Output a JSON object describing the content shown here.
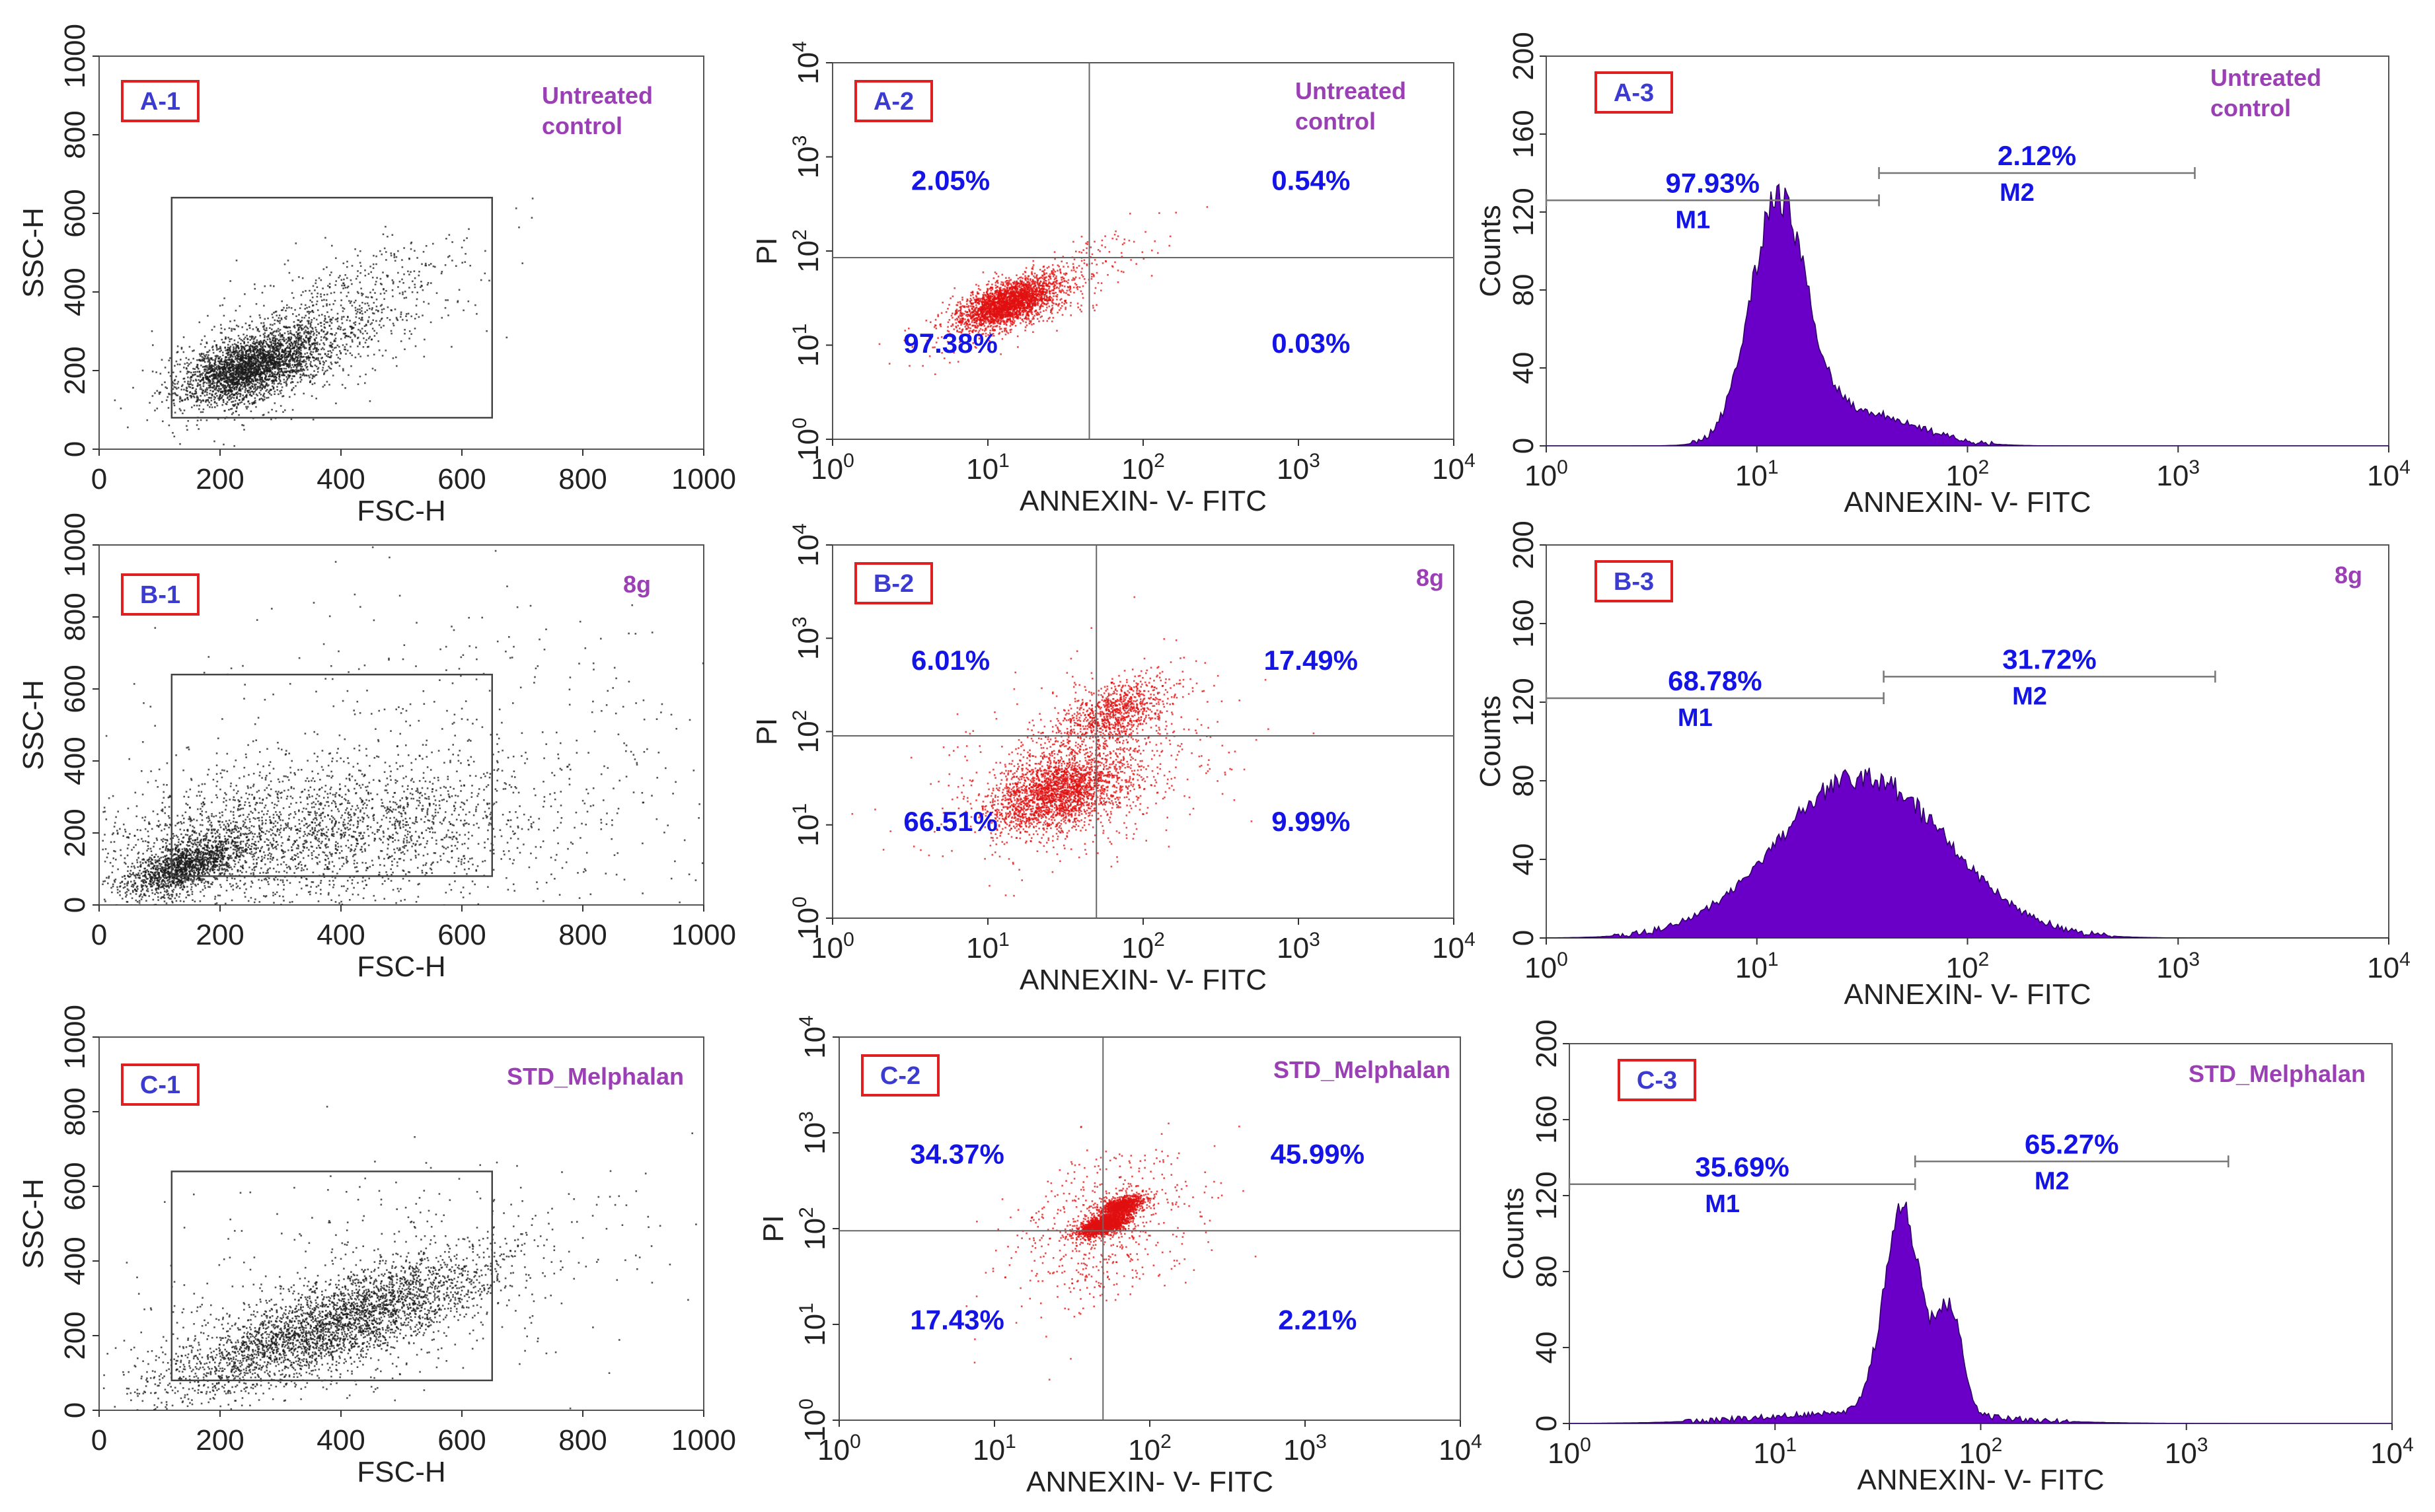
{
  "figure_title": "",
  "colors": {
    "scatter_gray": "#1a1a1a",
    "scatter_red": "#e01010",
    "histogram_fill": "#6a00c8",
    "percent_text": "#1414e6",
    "sample_text": "#9b3fb5",
    "panel_id_text": "#3b3bd1",
    "panel_id_border": "#e02020"
  },
  "chart_data": [
    {
      "id": "A-1",
      "type": "scatter",
      "sample": "Untreated control",
      "xlabel": "FSC-H",
      "ylabel": "SSC-H",
      "xlim": [
        0,
        1000
      ],
      "ylim": [
        0,
        1000
      ],
      "xticks": [
        "0",
        "200",
        "400",
        "600",
        "800",
        "1000"
      ],
      "yticks": [
        "0",
        "200",
        "400",
        "600",
        "800",
        "1000"
      ],
      "gate": {
        "x": [
          120,
          650
        ],
        "y": [
          80,
          640
        ]
      },
      "clusters": [
        {
          "cx": 250,
          "cy": 210,
          "sx": 55,
          "sy": 45,
          "n": 2600,
          "rho": 0.5
        },
        {
          "cx": 350,
          "cy": 300,
          "sx": 120,
          "sy": 110,
          "n": 1100,
          "rho": 0.7
        }
      ]
    },
    {
      "id": "A-2",
      "type": "scatter",
      "sample": "Untreated control",
      "xlabel": "ANNEXIN- V- FITC",
      "ylabel": "PI",
      "xscale": "log",
      "yscale": "log",
      "xlim": [
        1,
        10000
      ],
      "ylim": [
        1,
        10000
      ],
      "xtick_exps": [
        "0",
        "1",
        "2",
        "3",
        "4"
      ],
      "ytick_exps": [
        "0",
        "1",
        "2",
        "3",
        "4"
      ],
      "quadrant_split": {
        "x": 45,
        "y": 85
      },
      "quadrants": {
        "upper_left": "2.05%",
        "upper_right": "0.54%",
        "lower_left": "97.38%",
        "lower_right": "0.03%"
      },
      "clusters": [
        {
          "cx": 1.12,
          "cy": 1.45,
          "sx": 0.15,
          "sy": 0.13,
          "n": 2400,
          "rho": 0.55
        },
        {
          "cx": 1.3,
          "cy": 1.55,
          "sx": 0.35,
          "sy": 0.3,
          "n": 500,
          "rho": 0.8
        }
      ]
    },
    {
      "id": "A-3",
      "type": "histogram",
      "sample": "Untreated control",
      "xlabel": "ANNEXIN- V- FITC",
      "ylabel": "Counts",
      "xscale": "log",
      "xlim": [
        1,
        10000
      ],
      "ylim": [
        0,
        200
      ],
      "xtick_exps": [
        "0",
        "1",
        "2",
        "3",
        "4"
      ],
      "yticks": [
        "0",
        "40",
        "80",
        "120",
        "160",
        "200"
      ],
      "markers": [
        {
          "name": "M1",
          "range": [
            1,
            38
          ],
          "percent": "97.93%",
          "level": 126
        },
        {
          "name": "M2",
          "range": [
            38,
            1200
          ],
          "percent": "2.12%",
          "level": 140
        }
      ],
      "peaks": [
        {
          "center": 1.1,
          "sigma": 0.13,
          "height": 120
        },
        {
          "center": 1.45,
          "sigma": 0.28,
          "height": 18
        }
      ]
    },
    {
      "id": "B-1",
      "type": "scatter",
      "sample": "8g",
      "xlabel": "FSC-H",
      "ylabel": "SSC-H",
      "xlim": [
        0,
        1000
      ],
      "ylim": [
        0,
        1000
      ],
      "xticks": [
        "0",
        "200",
        "400",
        "600",
        "800",
        "1000"
      ],
      "yticks": [
        "0",
        "200",
        "400",
        "600",
        "800",
        "1000"
      ],
      "gate": {
        "x": [
          120,
          650
        ],
        "y": [
          80,
          640
        ]
      },
      "clusters": [
        {
          "cx": 140,
          "cy": 110,
          "sx": 50,
          "sy": 45,
          "n": 1500,
          "rho": 0.6
        },
        {
          "cx": 350,
          "cy": 200,
          "sx": 190,
          "sy": 100,
          "n": 2200,
          "rho": 0.25
        },
        {
          "cx": 600,
          "cy": 350,
          "sx": 300,
          "sy": 250,
          "n": 600,
          "rho": 0
        }
      ]
    },
    {
      "id": "B-2",
      "type": "scatter",
      "sample": "8g",
      "xlabel": "ANNEXIN- V- FITC",
      "ylabel": "PI",
      "xscale": "log",
      "yscale": "log",
      "xlim": [
        1,
        10000
      ],
      "ylim": [
        1,
        10000
      ],
      "xtick_exps": [
        "0",
        "1",
        "2",
        "3",
        "4"
      ],
      "ytick_exps": [
        "0",
        "1",
        "2",
        "3",
        "4"
      ],
      "quadrant_split": {
        "x": 50,
        "y": 90
      },
      "quadrants": {
        "upper_left": "6.01%",
        "upper_right": "17.49%",
        "lower_left": "66.51%",
        "lower_right": "9.99%"
      },
      "clusters": [
        {
          "cx": 1.45,
          "cy": 1.35,
          "sx": 0.22,
          "sy": 0.22,
          "n": 2200,
          "rho": 0.4
        },
        {
          "cx": 1.8,
          "cy": 2.2,
          "sx": 0.18,
          "sy": 0.18,
          "n": 900,
          "rho": 0.5
        },
        {
          "cx": 1.6,
          "cy": 1.6,
          "sx": 0.45,
          "sy": 0.45,
          "n": 700,
          "rho": 0.3
        }
      ]
    },
    {
      "id": "B-3",
      "type": "histogram",
      "sample": "8g",
      "xlabel": "ANNEXIN- V- FITC",
      "ylabel": "Counts",
      "xscale": "log",
      "xlim": [
        1,
        10000
      ],
      "ylim": [
        0,
        200
      ],
      "xtick_exps": [
        "0",
        "1",
        "2",
        "3",
        "4"
      ],
      "yticks": [
        "0",
        "40",
        "80",
        "120",
        "160",
        "200"
      ],
      "markers": [
        {
          "name": "M1",
          "range": [
            1,
            40
          ],
          "percent": "68.78%",
          "level": 122
        },
        {
          "name": "M2",
          "range": [
            40,
            1500
          ],
          "percent": "31.72%",
          "level": 133
        }
      ],
      "peaks": [
        {
          "center": 1.5,
          "sigma": 0.4,
          "height": 82
        }
      ]
    },
    {
      "id": "C-1",
      "type": "scatter",
      "sample": "STD_Melphalan",
      "xlabel": "FSC-H",
      "ylabel": "SSC-H",
      "xlim": [
        0,
        1000
      ],
      "ylim": [
        0,
        1000
      ],
      "xticks": [
        "0",
        "200",
        "400",
        "600",
        "800",
        "1000"
      ],
      "yticks": [
        "0",
        "200",
        "400",
        "600",
        "800",
        "1000"
      ],
      "gate": {
        "x": [
          120,
          650
        ],
        "y": [
          80,
          640
        ]
      },
      "clusters": [
        {
          "cx": 380,
          "cy": 230,
          "sx": 140,
          "sy": 95,
          "n": 3200,
          "rho": 0.8
        },
        {
          "cx": 450,
          "cy": 300,
          "sx": 220,
          "sy": 180,
          "n": 500,
          "rho": 0.4
        }
      ]
    },
    {
      "id": "C-2",
      "type": "scatter",
      "sample": "STD_Melphalan",
      "xlabel": "ANNEXIN- V- FITC",
      "ylabel": "PI",
      "xscale": "log",
      "yscale": "log",
      "xlim": [
        1,
        10000
      ],
      "ylim": [
        1,
        10000
      ],
      "xtick_exps": [
        "0",
        "1",
        "2",
        "3",
        "4"
      ],
      "ytick_exps": [
        "0",
        "1",
        "2",
        "3",
        "4"
      ],
      "quadrant_split": {
        "x": 50,
        "y": 95
      },
      "quadrants": {
        "upper_left": "34.37%",
        "upper_right": "45.99%",
        "lower_left": "17.43%",
        "lower_right": "2.21%"
      },
      "clusters": [
        {
          "cx": 1.7,
          "cy": 2.05,
          "sx": 0.08,
          "sy": 0.06,
          "n": 1700,
          "rho": 0.6
        },
        {
          "cx": 1.82,
          "cy": 2.25,
          "sx": 0.07,
          "sy": 0.05,
          "n": 900,
          "rho": 0.5
        },
        {
          "cx": 1.7,
          "cy": 2.0,
          "sx": 0.3,
          "sy": 0.45,
          "n": 600,
          "rho": 0.3
        }
      ]
    },
    {
      "id": "C-3",
      "type": "histogram",
      "sample": "STD_Melphalan",
      "xlabel": "ANNEXIN- V- FITC",
      "ylabel": "Counts",
      "xscale": "log",
      "xlim": [
        1,
        10000
      ],
      "ylim": [
        0,
        200
      ],
      "xtick_exps": [
        "0",
        "1",
        "2",
        "3",
        "4"
      ],
      "yticks": [
        "0",
        "40",
        "80",
        "120",
        "160",
        "200"
      ],
      "markers": [
        {
          "name": "M1",
          "range": [
            1,
            48
          ],
          "percent": "35.69%",
          "level": 126
        },
        {
          "name": "M2",
          "range": [
            48,
            1600
          ],
          "percent": "65.27%",
          "level": 138
        }
      ],
      "peaks": [
        {
          "center": 1.62,
          "sigma": 0.09,
          "height": 108
        },
        {
          "center": 1.85,
          "sigma": 0.06,
          "height": 55
        },
        {
          "center": 1.5,
          "sigma": 0.5,
          "height": 6
        }
      ]
    }
  ]
}
